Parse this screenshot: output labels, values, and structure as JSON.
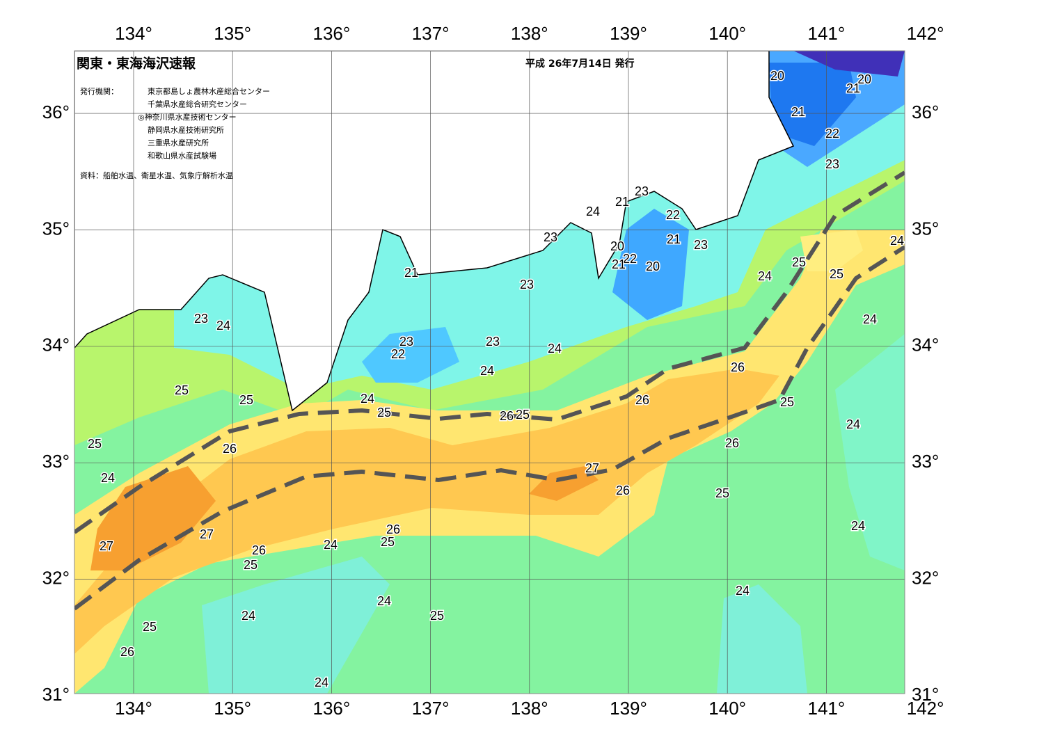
{
  "map": {
    "title": "関東・東海海沢速報",
    "issued": "平成 26年7月14日 発行",
    "publisher_label": "発行機関：",
    "publishers": [
      "東京都島しょ農林水産総合センター",
      "千葉県水産総合研究センター",
      "◎神奈川県水産技術センター",
      "静岡県水産技術研究所",
      "三重県水産研究所",
      "和歌山県水産試験場"
    ],
    "source": "資料：船舶水温、衛星水温、気象庁解析水温",
    "lon_ticks": [
      {
        "value": 134,
        "label": "134°"
      },
      {
        "value": 135,
        "label": "135°"
      },
      {
        "value": 136,
        "label": "136°"
      },
      {
        "value": 137,
        "label": "137°"
      },
      {
        "value": 138,
        "label": "138°"
      },
      {
        "value": 139,
        "label": "139°"
      },
      {
        "value": 140,
        "label": "140°"
      },
      {
        "value": 141,
        "label": "141°"
      },
      {
        "value": 142,
        "label": "142°"
      }
    ],
    "lat_ticks": [
      {
        "value": 31,
        "label": "31°"
      },
      {
        "value": 32,
        "label": "32°"
      },
      {
        "value": 33,
        "label": "33°"
      },
      {
        "value": 34,
        "label": "34°"
      },
      {
        "value": 35,
        "label": "35°"
      },
      {
        "value": 36,
        "label": "36°"
      }
    ],
    "contour_labels": [
      20,
      20,
      21,
      21,
      22,
      23,
      23,
      21,
      24,
      22,
      23,
      21,
      23,
      20,
      22,
      21,
      20,
      21,
      24,
      25,
      25,
      24,
      23,
      24,
      23,
      24,
      23,
      23,
      24,
      22,
      26,
      24,
      25,
      25,
      24,
      26,
      25,
      25,
      26,
      25,
      24,
      25,
      26,
      26,
      27,
      24,
      26,
      25,
      26,
      27,
      25,
      24,
      27,
      26,
      24,
      25,
      24,
      24,
      24,
      25,
      25,
      26,
      24
    ]
  }
}
